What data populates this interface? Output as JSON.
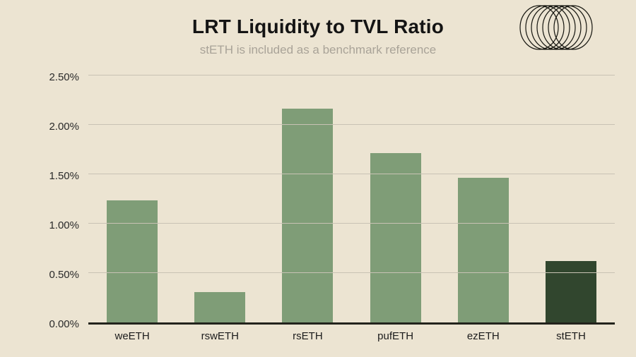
{
  "header": {
    "title": "LRT Liquidity to TVL Ratio",
    "subtitle": "stETH is included as a benchmark reference"
  },
  "logo": {
    "name": "coil-rings-logo"
  },
  "chart_data": {
    "type": "bar",
    "title": "LRT Liquidity to TVL Ratio",
    "subtitle": "stETH is included as a benchmark reference",
    "categories": [
      "weETH",
      "rswETH",
      "rsETH",
      "pufETH",
      "ezETH",
      "stETH"
    ],
    "values": [
      1.25,
      0.31,
      2.18,
      1.73,
      1.48,
      0.63
    ],
    "value_unit": "%",
    "xlabel": "",
    "ylabel": "",
    "ylim": [
      0,
      2.5
    ],
    "ytick_step": 0.5,
    "ytick_labels": [
      "0.00%",
      "0.50%",
      "1.00%",
      "1.50%",
      "2.00%",
      "2.50%"
    ],
    "grid": true,
    "legend_position": "none",
    "bar_colors": [
      "#7f9d77",
      "#7f9d77",
      "#7f9d77",
      "#7f9d77",
      "#7f9d77",
      "#31462e"
    ]
  },
  "colors": {
    "background": "#ece4d2",
    "bar_default": "#7f9d77",
    "bar_benchmark": "#31462e",
    "gridline": "#c8c2b4",
    "axis": "#23231c",
    "title": "#141414",
    "subtitle_text": "#a9a398"
  }
}
